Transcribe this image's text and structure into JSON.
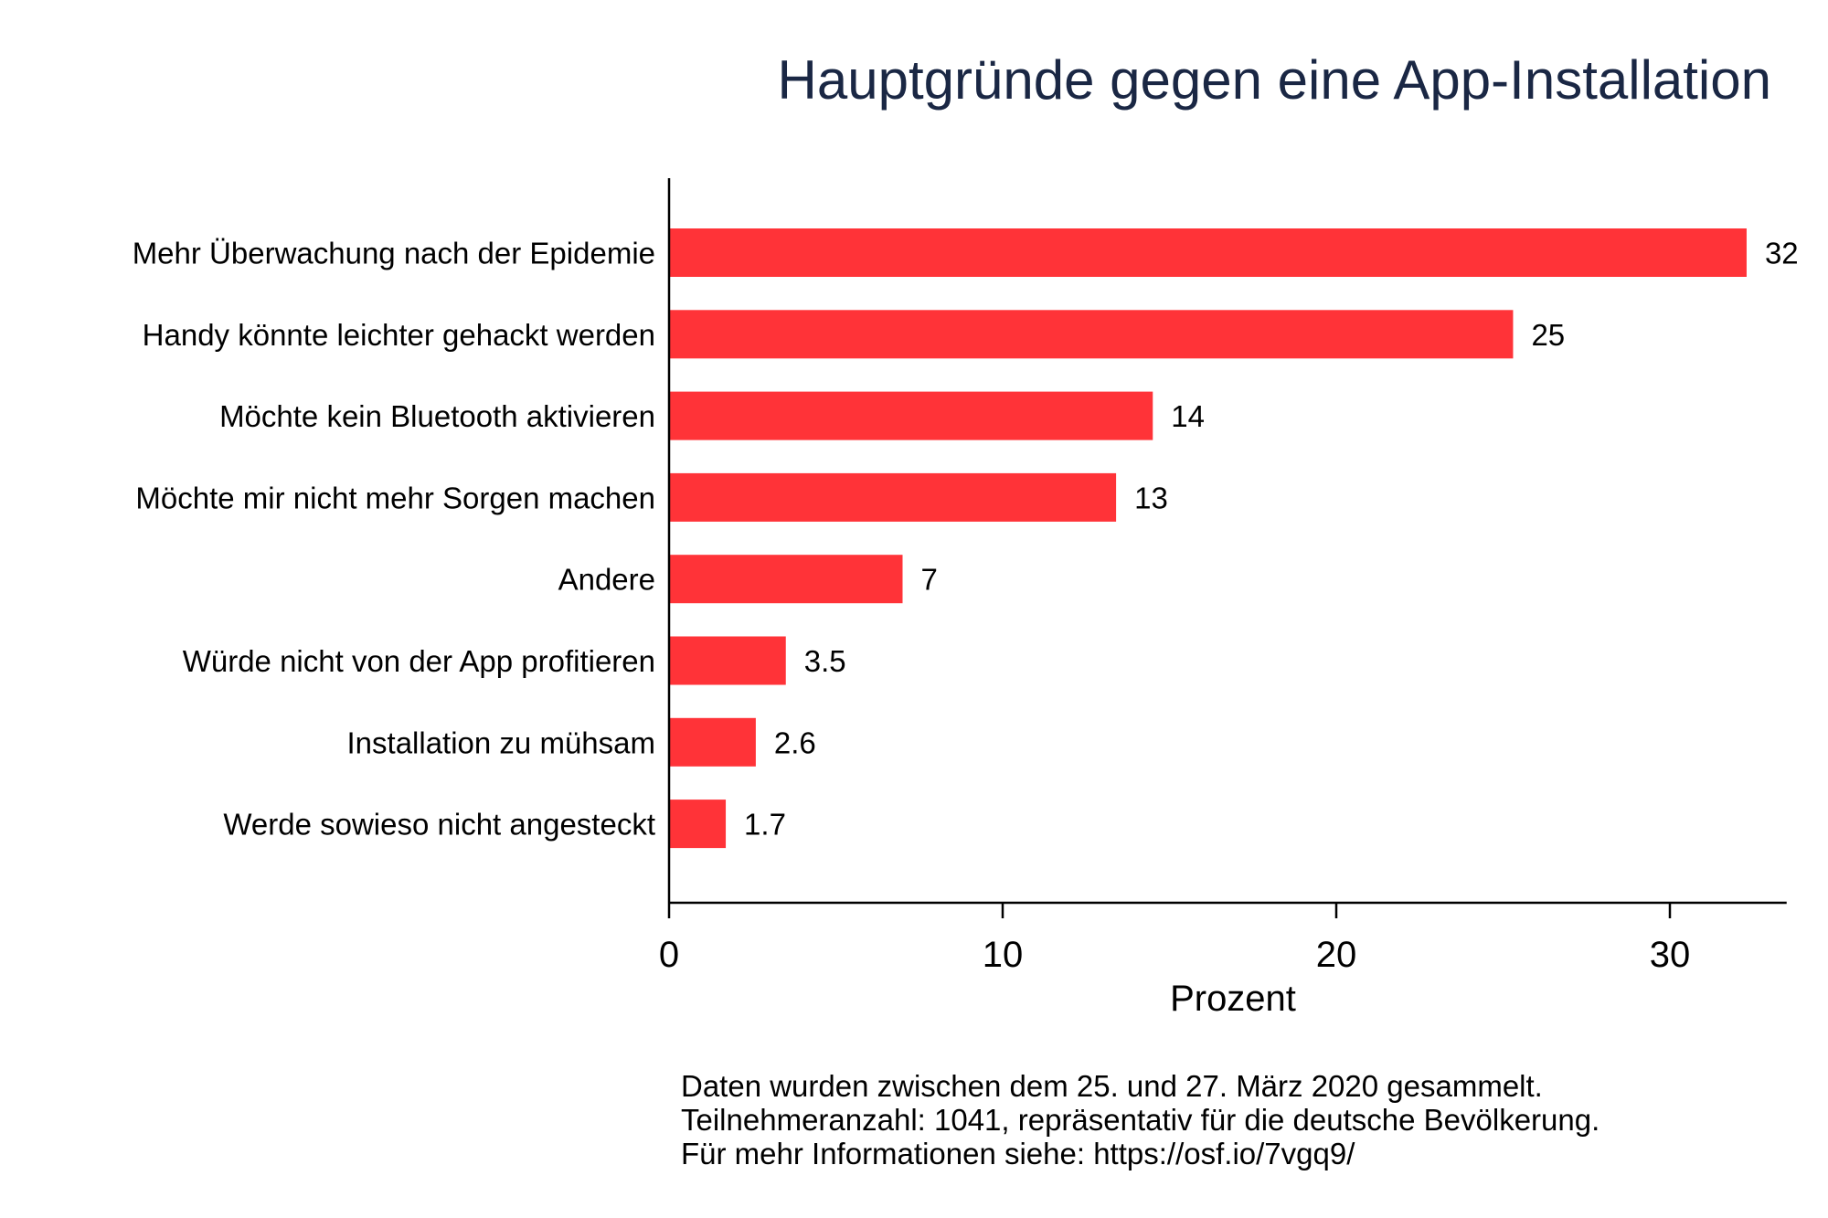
{
  "chart_data": {
    "type": "bar",
    "orientation": "horizontal",
    "title": "Hauptgründe gegen eine App-Installation",
    "xlabel": "Prozent",
    "ylabel": "",
    "xlim": [
      0,
      33.5
    ],
    "xticks": [
      0,
      10,
      20,
      30
    ],
    "grid": false,
    "bar_color": "#ff3338",
    "title_color": "#1a2744",
    "categories": [
      "Mehr Überwachung nach der Epidemie",
      "Handy könnte leichter gehackt werden",
      "Möchte kein Bluetooth aktivieren",
      "Möchte mir nicht mehr Sorgen machen",
      "Andere",
      "Würde nicht von der App profitieren",
      "Installation zu mühsam",
      "Werde sowieso nicht angesteckt"
    ],
    "values": [
      32.3,
      25.3,
      14.5,
      13.4,
      7.0,
      3.5,
      2.6,
      1.7
    ],
    "data_labels": [
      "32",
      "25",
      "14",
      "13",
      "7",
      "3.5",
      "2.6",
      "1.7"
    ]
  },
  "footnote": [
    "Daten wurden zwischen dem 25. und 27. März 2020 gesammelt.",
    "Teilnehmeranzahl: 1041, repräsentativ für die deutsche Bevölkerung.",
    "Für mehr Informationen siehe: https://osf.io/7vgq9/"
  ]
}
